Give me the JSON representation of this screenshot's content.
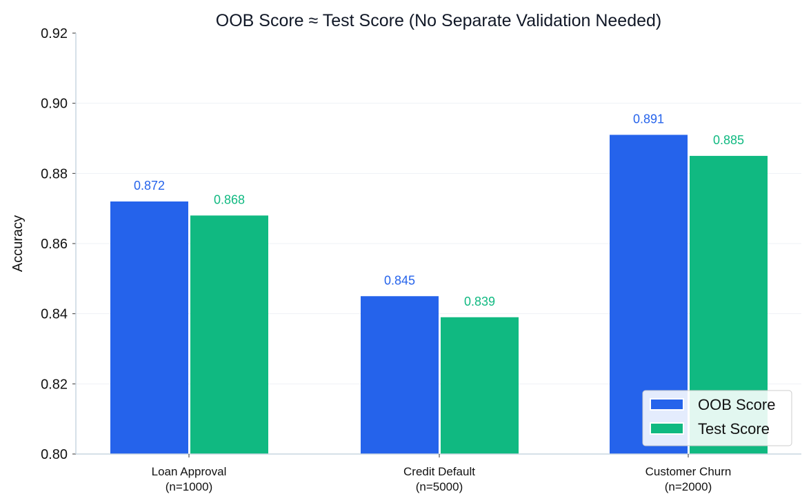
{
  "chart_data": {
    "type": "bar",
    "title": "OOB Score ≈ Test Score (No Separate Validation Needed)",
    "xlabel": "",
    "ylabel": "Accuracy",
    "ylim": [
      0.8,
      0.92
    ],
    "yticks": [
      "0.80",
      "0.82",
      "0.84",
      "0.86",
      "0.88",
      "0.90",
      "0.92"
    ],
    "categories": [
      "Loan Approval\n(n=1000)",
      "Credit Default\n(n=5000)",
      "Customer Churn\n(n=2000)"
    ],
    "category_lines": [
      [
        "Loan Approval",
        "(n=1000)"
      ],
      [
        "Credit Default",
        "(n=5000)"
      ],
      [
        "Customer Churn",
        "(n=2000)"
      ]
    ],
    "series": [
      {
        "name": "OOB Score",
        "values": [
          0.872,
          0.845,
          0.891
        ],
        "labels": [
          "0.872",
          "0.845",
          "0.891"
        ],
        "color": "#2563eb"
      },
      {
        "name": "Test Score",
        "values": [
          0.868,
          0.839,
          0.885
        ],
        "labels": [
          "0.868",
          "0.839",
          "0.885"
        ],
        "color": "#10b981"
      }
    ],
    "grid": "horizontal",
    "legend": "lower-right"
  }
}
